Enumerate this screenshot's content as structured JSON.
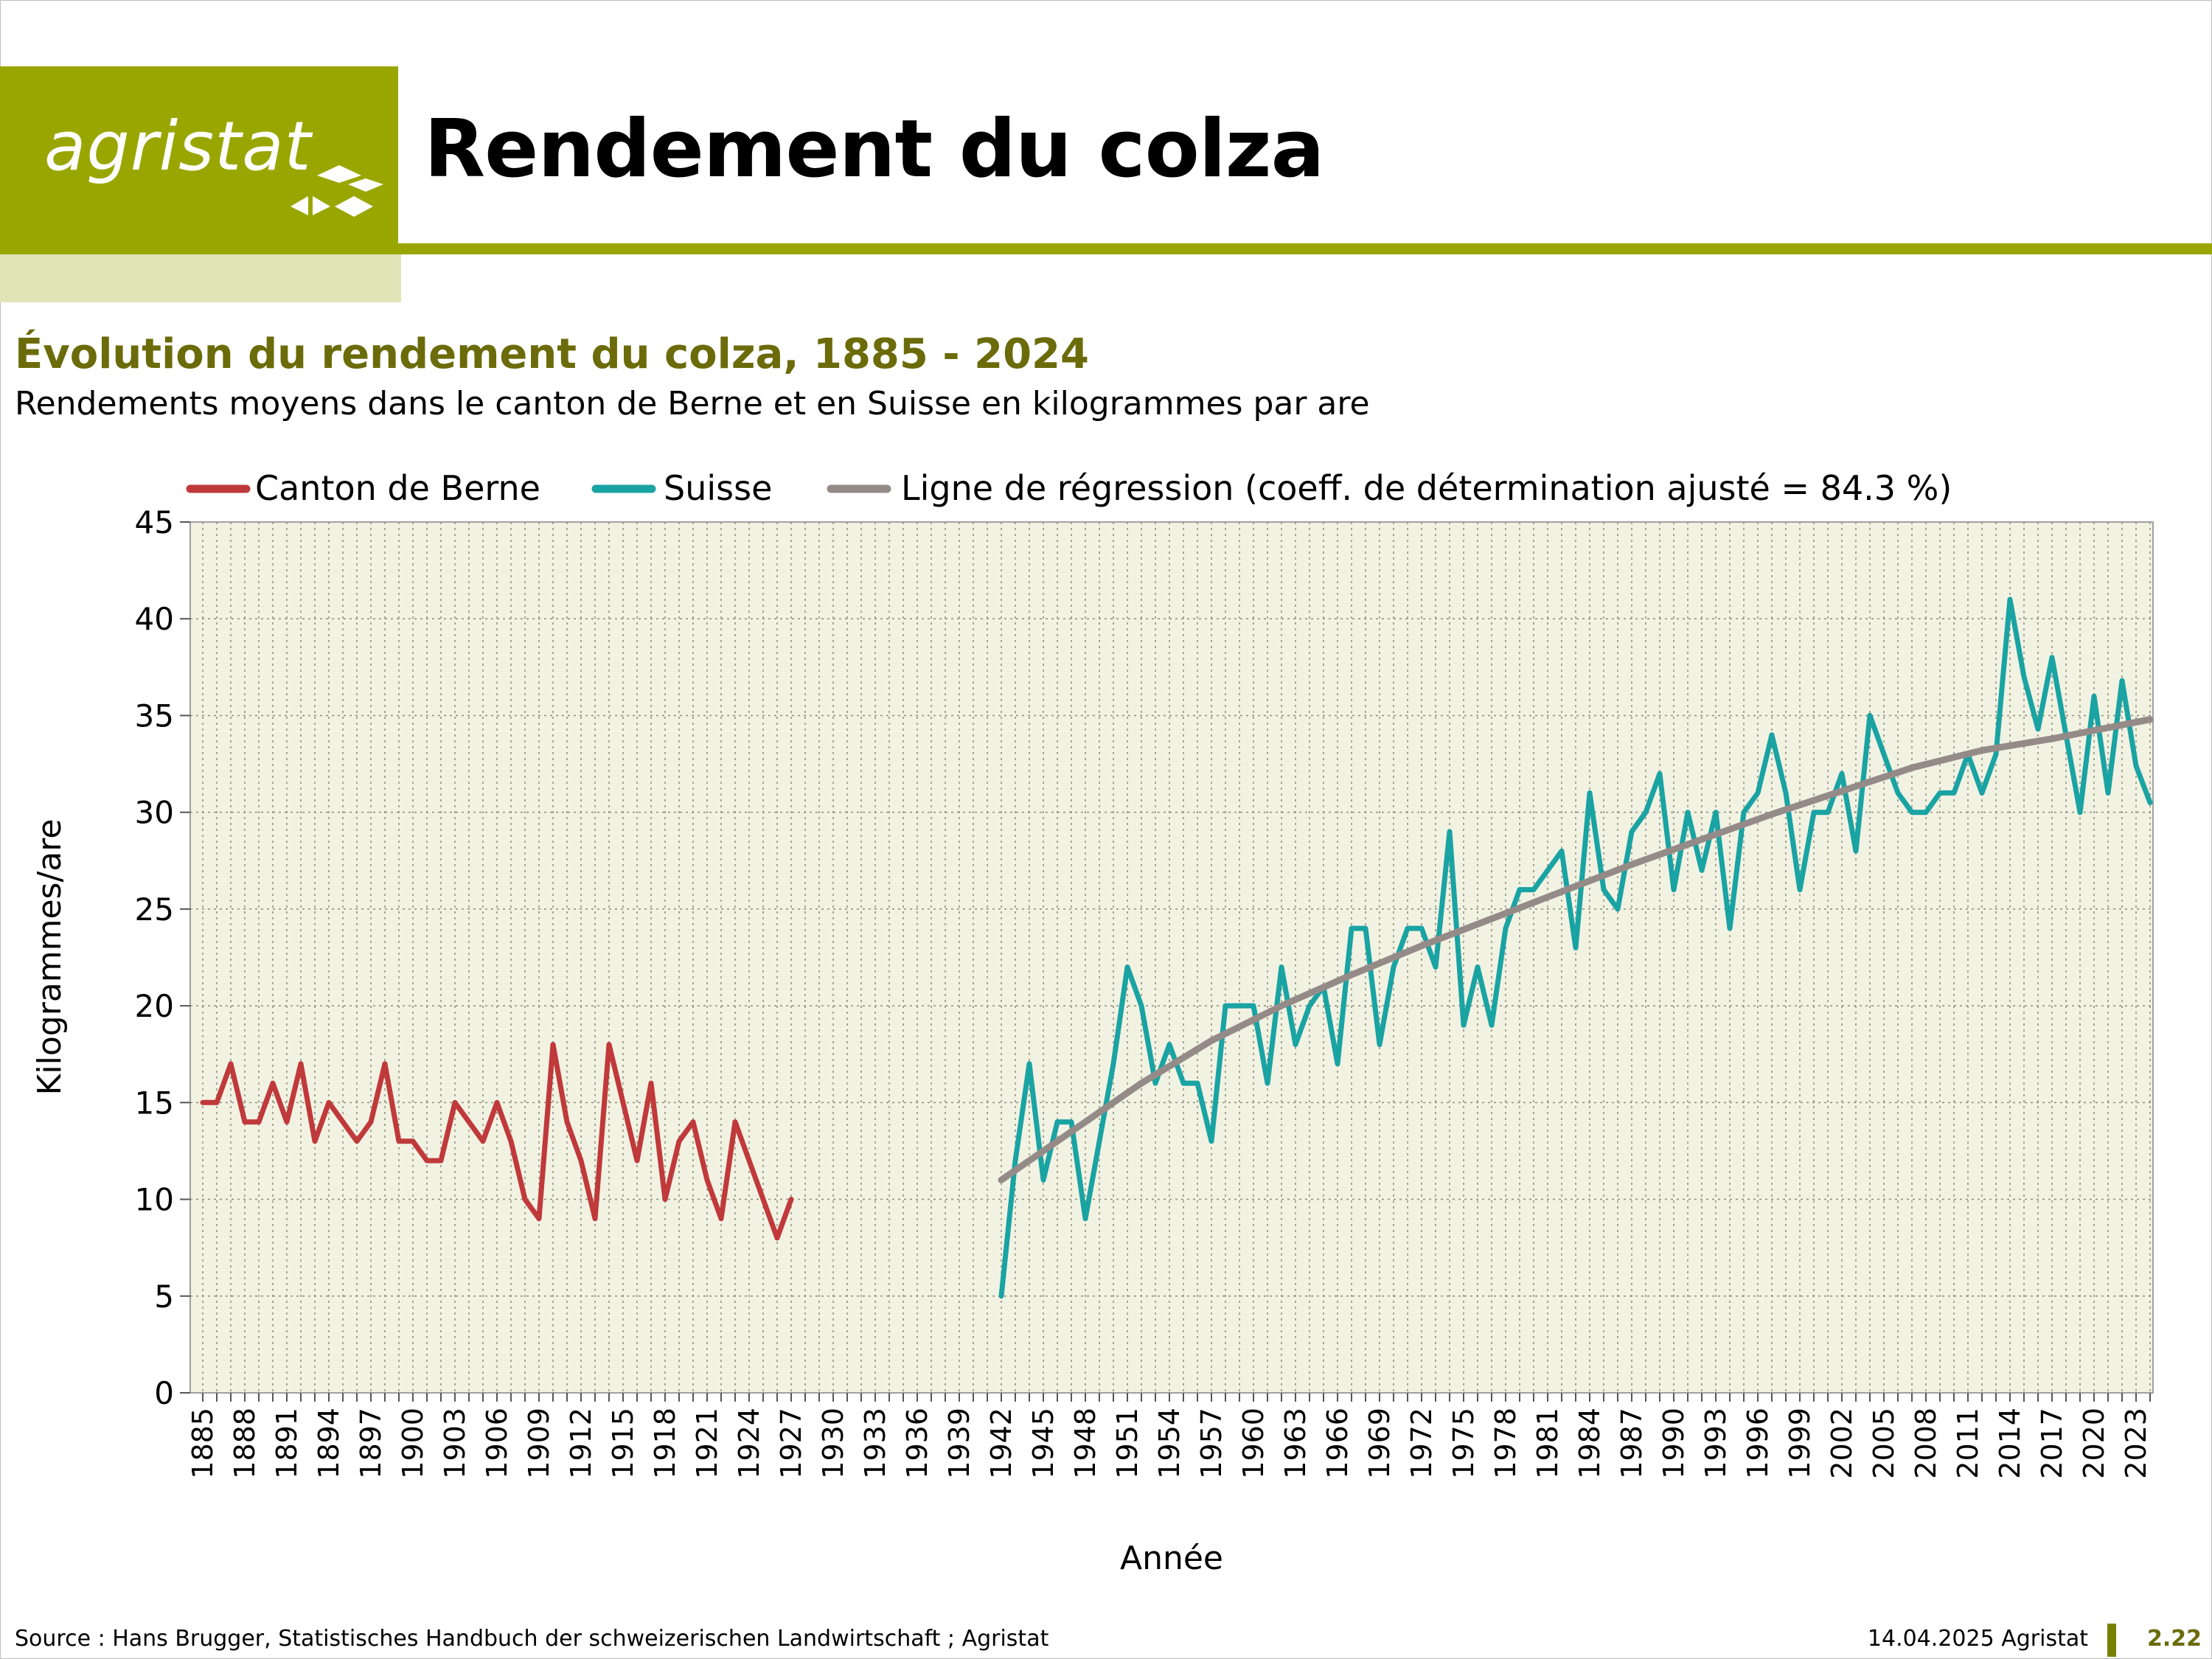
{
  "header": {
    "logo_text": "agristat",
    "title": "Rendement du colza"
  },
  "colors": {
    "brand": "#9aa600",
    "brand_light": "#e1e4b6",
    "plot_bg": "#f2f2e3",
    "bern": "#c0393b",
    "suisse": "#1aa3a3",
    "regression": "#948b88",
    "subtitle": "#6b6b0a"
  },
  "subtitle": "Évolution du rendement du colza, 1885 - 2024",
  "description": "Rendements moyens dans le canton de Berne et en Suisse en kilogrammes par are",
  "footer": {
    "source": "Source : Hans Brugger, Statistisches Handbuch der schweizerischen Landwirtschaft ; Agristat",
    "date": "14.04.2025 Agristat",
    "page": "2.22"
  },
  "chart_data": {
    "type": "line",
    "xlabel": "Année",
    "ylabel": "Kilogrammes/are",
    "xlim": [
      1885,
      2024
    ],
    "ylim": [
      0,
      45
    ],
    "yticks": [
      0,
      5,
      10,
      15,
      20,
      25,
      30,
      35,
      40,
      45
    ],
    "xticks": [
      1885,
      1888,
      1891,
      1894,
      1897,
      1900,
      1903,
      1906,
      1909,
      1912,
      1915,
      1918,
      1921,
      1924,
      1927,
      1930,
      1933,
      1936,
      1939,
      1942,
      1945,
      1948,
      1951,
      1954,
      1957,
      1960,
      1963,
      1966,
      1969,
      1972,
      1975,
      1978,
      1981,
      1984,
      1987,
      1990,
      1993,
      1996,
      1999,
      2002,
      2005,
      2008,
      2011,
      2014,
      2017,
      2020,
      2023
    ],
    "grid": true,
    "legend_position": "top",
    "series": [
      {
        "name": "Canton de Berne",
        "color": "#c0393b",
        "x": [
          1885,
          1886,
          1887,
          1888,
          1889,
          1890,
          1891,
          1892,
          1893,
          1894,
          1895,
          1896,
          1897,
          1898,
          1899,
          1900,
          1901,
          1902,
          1903,
          1904,
          1905,
          1906,
          1907,
          1908,
          1909,
          1910,
          1911,
          1912,
          1913,
          1914,
          1915,
          1916,
          1917,
          1918,
          1919,
          1920,
          1921,
          1922,
          1923,
          1924,
          1925,
          1926,
          1927
        ],
        "values": [
          15,
          15,
          17,
          14,
          14,
          16,
          14,
          17,
          13,
          15,
          14,
          13,
          14,
          17,
          13,
          13,
          12,
          12,
          15,
          14,
          13,
          15,
          13,
          10,
          9,
          18,
          14,
          12,
          9,
          18,
          15,
          12,
          16,
          10,
          13,
          14,
          11,
          9,
          14,
          12,
          10,
          8,
          10
        ]
      },
      {
        "name": "Suisse",
        "color": "#1aa3a3",
        "x": [
          1942,
          1943,
          1944,
          1945,
          1946,
          1947,
          1948,
          1949,
          1950,
          1951,
          1952,
          1953,
          1954,
          1955,
          1956,
          1957,
          1958,
          1959,
          1960,
          1961,
          1962,
          1963,
          1964,
          1965,
          1966,
          1967,
          1968,
          1969,
          1970,
          1971,
          1972,
          1973,
          1974,
          1975,
          1976,
          1977,
          1978,
          1979,
          1980,
          1981,
          1982,
          1983,
          1984,
          1985,
          1986,
          1987,
          1988,
          1989,
          1990,
          1991,
          1992,
          1993,
          1994,
          1995,
          1996,
          1997,
          1998,
          1999,
          2000,
          2001,
          2002,
          2003,
          2004,
          2005,
          2006,
          2007,
          2008,
          2009,
          2010,
          2011,
          2012,
          2013,
          2014,
          2015,
          2016,
          2017,
          2018,
          2019,
          2020,
          2021,
          2022,
          2023,
          2024
        ],
        "values": [
          5,
          12,
          17,
          11,
          14,
          14,
          9,
          13,
          17,
          22,
          20,
          16,
          18,
          16,
          16,
          13,
          20,
          20,
          20,
          16,
          22,
          18,
          20,
          21,
          17,
          24,
          24,
          18,
          22,
          24,
          24,
          22,
          29,
          19,
          22,
          19,
          24,
          26,
          26,
          27,
          28,
          23,
          31,
          26,
          25,
          29,
          30,
          32,
          26,
          30,
          27,
          30,
          24,
          30,
          31,
          34,
          31,
          26,
          30,
          30,
          32,
          28,
          35,
          33,
          31,
          30,
          30,
          31,
          31,
          33,
          31,
          33,
          41,
          37,
          34.3,
          38,
          34,
          30,
          36,
          31,
          36.8,
          32.4,
          30.5
        ]
      },
      {
        "name": "Ligne de régression (coeff. de détermination ajusté = 84.3 %)",
        "color": "#948b88",
        "x": [
          1942,
          1947,
          1952,
          1957,
          1962,
          1967,
          1972,
          1977,
          1982,
          1987,
          1992,
          1997,
          2002,
          2007,
          2012,
          2017,
          2024
        ],
        "values": [
          11,
          13.5,
          16,
          18.2,
          20,
          21.6,
          23.1,
          24.5,
          25.9,
          27.3,
          28.6,
          29.9,
          31.1,
          32.3,
          33.2,
          33.8,
          34.8
        ]
      }
    ]
  }
}
